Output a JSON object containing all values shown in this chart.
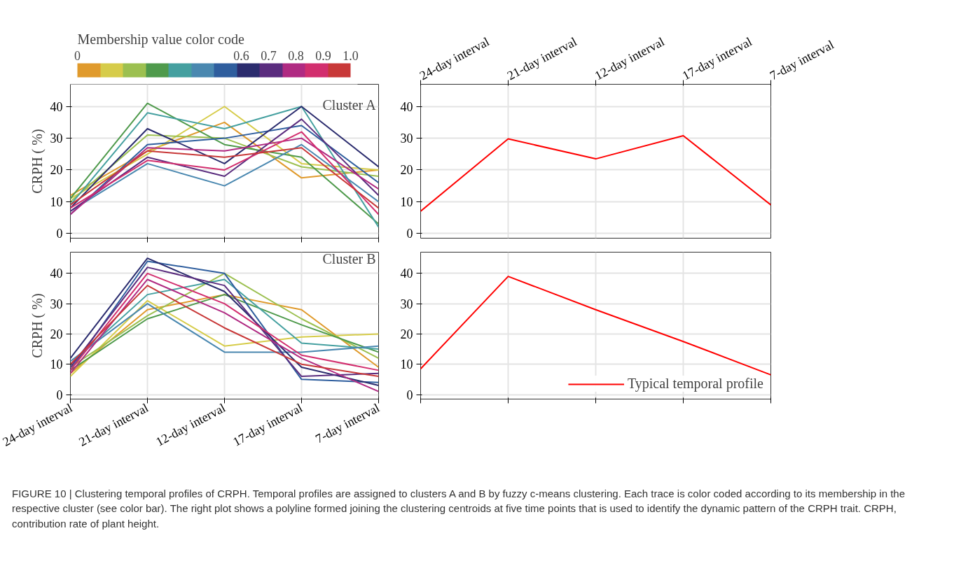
{
  "chart_data": [
    {
      "type": "line",
      "ylabel": "CRPH ( %)",
      "annotations": [
        "Cluster A"
      ],
      "clabel": "Membership value color code",
      "clim": [
        0,
        1
      ],
      "cticks": [
        0,
        0.6,
        0.7,
        0.8,
        0.9,
        {
          "value": 1,
          "label": "1.0"
        }
      ],
      "categories": [
        null,
        null,
        null,
        null,
        null
      ],
      "ylim": [
        -1.5,
        47
      ],
      "yticks": [
        0,
        10,
        20,
        30,
        40
      ],
      "grid": true,
      "tick_labels": "y",
      "series": [
        {
          "color": "#e09a2c",
          "values": [
            12,
            26,
            35,
            17.5,
            20
          ]
        },
        {
          "color": "#d6cc4a",
          "values": [
            11,
            25,
            40,
            22,
            20
          ]
        },
        {
          "color": "#9cc050",
          "values": [
            10,
            31,
            30,
            21,
            18
          ]
        },
        {
          "color": "#4f9a4c",
          "values": [
            11,
            41,
            28,
            24,
            3
          ]
        },
        {
          "color": "#45a0a0",
          "values": [
            9,
            38,
            33,
            40,
            2
          ]
        },
        {
          "color": "#4a88b0",
          "values": [
            7,
            22,
            15,
            28,
            10
          ]
        },
        {
          "color": "#2f5e9e",
          "values": [
            6,
            28,
            30,
            34,
            16
          ]
        },
        {
          "color": "#2b2c6e",
          "values": [
            8,
            33,
            22,
            40,
            21
          ]
        },
        {
          "color": "#5a2c7e",
          "values": [
            7,
            24,
            18,
            36,
            12
          ]
        },
        {
          "color": "#b02a82",
          "values": [
            6,
            27,
            26,
            30,
            14
          ]
        },
        {
          "color": "#d22e6e",
          "values": [
            8,
            23,
            20,
            32,
            6
          ]
        },
        {
          "color": "#c83838",
          "values": [
            9,
            26,
            24,
            27,
            8
          ]
        }
      ]
    },
    {
      "type": "line",
      "categories": [
        "24-day interval",
        "21-day interval",
        "12-day interval",
        "17-day interval",
        "7-day interval"
      ],
      "ylim": [
        -1.5,
        47
      ],
      "yticks": [
        0,
        10,
        20,
        30,
        40
      ],
      "grid": true,
      "series": [
        {
          "color": "#ff0000",
          "values": [
            7,
            29.8,
            23.5,
            30.8,
            9
          ]
        }
      ]
    },
    {
      "type": "line",
      "ylabel": "CRPH ( %)",
      "annotations": [
        "Cluster B"
      ],
      "categories": [
        "24-day interval",
        "21-day interval",
        "12-day interval",
        "17-day interval",
        "7-day interval"
      ],
      "ylim": [
        -1.5,
        47
      ],
      "yticks": [
        0,
        10,
        20,
        30,
        40
      ],
      "grid": true,
      "series": [
        {
          "color": "#e09a2c",
          "values": [
            7,
            28,
            33,
            28,
            9
          ]
        },
        {
          "color": "#d6cc4a",
          "values": [
            6,
            31,
            16,
            19,
            20
          ]
        },
        {
          "color": "#9cc050",
          "values": [
            9,
            26,
            40,
            25,
            12
          ]
        },
        {
          "color": "#4f9a4c",
          "values": [
            8,
            25,
            33,
            23,
            14
          ]
        },
        {
          "color": "#45a0a0",
          "values": [
            10,
            33,
            38,
            17,
            15
          ]
        },
        {
          "color": "#4a88b0",
          "values": [
            11,
            30,
            14,
            14,
            16
          ]
        },
        {
          "color": "#2f5e9e",
          "values": [
            8,
            44,
            40,
            5,
            4
          ]
        },
        {
          "color": "#2b2c6e",
          "values": [
            12,
            45,
            34,
            9,
            3
          ]
        },
        {
          "color": "#5a2c7e",
          "values": [
            9,
            42,
            36,
            6,
            7
          ]
        },
        {
          "color": "#b02a82",
          "values": [
            7,
            38,
            27,
            12,
            1
          ]
        },
        {
          "color": "#d22e6e",
          "values": [
            8,
            40,
            30,
            13,
            8
          ]
        },
        {
          "color": "#c83838",
          "values": [
            10,
            36,
            22,
            10,
            6
          ]
        }
      ]
    },
    {
      "type": "line",
      "categories": [
        null,
        null,
        null,
        null,
        null
      ],
      "ylim": [
        -1.5,
        47
      ],
      "yticks": [
        0,
        10,
        20,
        30,
        40
      ],
      "grid": true,
      "tick_labels": "y",
      "legend": "bottom right",
      "annotations": [
        "FIGURE 10 | Clustering temporal profiles of CRPH. Temporal profiles are assigned to clusters A and B by fuzzy c-means clustering. Each trace is color coded according to its membership in the respective cluster (see color bar). The right plot shows a polyline formed joining the clustering centroids at five time points that is used to identify the dynamic pattern of the CRPH trait. CRPH, contribution rate of plant height."
      ],
      "series": [
        {
          "name": "Typical temporal profile",
          "color": "#ff0000",
          "values": [
            8.5,
            39,
            28,
            17.5,
            6.5
          ]
        }
      ]
    }
  ]
}
